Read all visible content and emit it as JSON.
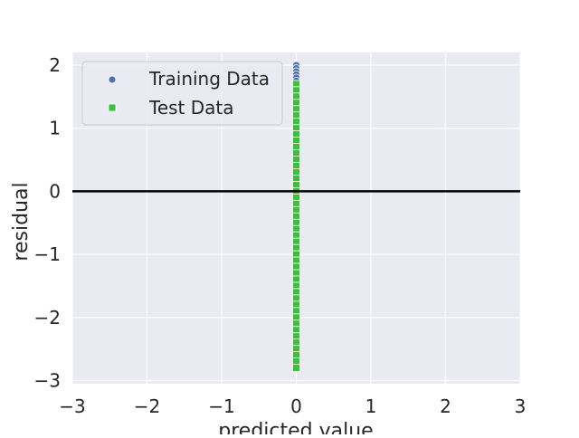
{
  "chart_data": {
    "type": "scatter",
    "title": "",
    "xlabel": "predicted value",
    "ylabel": "residual",
    "xlim": [
      -3,
      3
    ],
    "ylim": [
      -3.05,
      2.2
    ],
    "xticks": [
      -3,
      -2,
      -1,
      0,
      1,
      2,
      3
    ],
    "yticks": [
      -3,
      -2,
      -1,
      0,
      1,
      2
    ],
    "xtick_labels": [
      "−3",
      "−2",
      "−1",
      "0",
      "1",
      "2",
      "3"
    ],
    "ytick_labels": [
      "−3",
      "−2",
      "−1",
      "0",
      "1",
      "2"
    ],
    "grid": true,
    "legend_position": "top-left",
    "hline": {
      "y": 0,
      "color": "#000000"
    },
    "series": [
      {
        "name": "Training Data",
        "marker": "circle",
        "color": "#4c72b0",
        "points": [
          [
            0,
            2.0
          ],
          [
            0,
            1.95
          ],
          [
            0,
            1.9
          ],
          [
            0,
            1.85
          ],
          [
            0,
            1.8
          ],
          [
            0,
            1.75
          ],
          [
            0,
            1.7
          ],
          [
            0,
            1.65
          ],
          [
            0,
            1.2
          ],
          [
            0,
            0.6
          ],
          [
            0,
            0.0
          ],
          [
            0,
            -0.5
          ],
          [
            0,
            -1.0
          ],
          [
            0,
            -1.6
          ],
          [
            0,
            -2.0
          ],
          [
            0,
            -2.2
          ],
          [
            0,
            -2.42
          ]
        ]
      },
      {
        "name": "Test Data",
        "marker": "square",
        "color": "#3dbf3d",
        "points": [
          [
            0,
            1.7
          ],
          [
            0,
            1.6
          ],
          [
            0,
            1.5
          ],
          [
            0,
            1.4
          ],
          [
            0,
            1.3
          ],
          [
            0,
            1.2
          ],
          [
            0,
            1.1
          ],
          [
            0,
            1.0
          ],
          [
            0,
            0.9
          ],
          [
            0,
            0.8
          ],
          [
            0,
            0.7
          ],
          [
            0,
            0.6
          ],
          [
            0,
            0.5
          ],
          [
            0,
            0.4
          ],
          [
            0,
            0.3
          ],
          [
            0,
            0.2
          ],
          [
            0,
            0.1
          ],
          [
            0,
            0.0
          ],
          [
            0,
            -0.1
          ],
          [
            0,
            -0.2
          ],
          [
            0,
            -0.3
          ],
          [
            0,
            -0.4
          ],
          [
            0,
            -0.5
          ],
          [
            0,
            -0.6
          ],
          [
            0,
            -0.7
          ],
          [
            0,
            -0.8
          ],
          [
            0,
            -0.9
          ],
          [
            0,
            -1.0
          ],
          [
            0,
            -1.1
          ],
          [
            0,
            -1.2
          ],
          [
            0,
            -1.3
          ],
          [
            0,
            -1.4
          ],
          [
            0,
            -1.5
          ],
          [
            0,
            -1.6
          ],
          [
            0,
            -1.7
          ],
          [
            0,
            -1.8
          ],
          [
            0,
            -1.9
          ],
          [
            0,
            -2.0
          ],
          [
            0,
            -2.1
          ],
          [
            0,
            -2.2
          ],
          [
            0,
            -2.3
          ],
          [
            0,
            -2.4
          ],
          [
            0,
            -2.5
          ],
          [
            0,
            -2.6
          ],
          [
            0,
            -2.7
          ],
          [
            0,
            -2.8
          ]
        ]
      }
    ]
  }
}
